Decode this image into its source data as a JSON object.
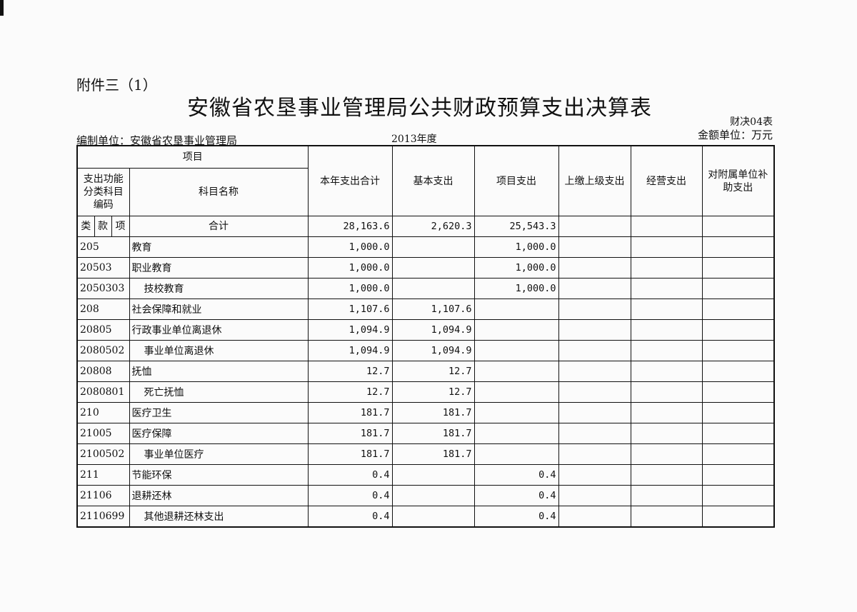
{
  "header": {
    "attachment": "附件三（1）",
    "title": "安徽省农垦事业管理局公共财政预算支出决算表",
    "form_no": "财决04表",
    "amount_unit": "金额单位：万元",
    "org": "编制单位：安徽省农垦事业管理局",
    "year": "2013年度"
  },
  "columns": {
    "item": "项目",
    "code": "支出功能分类科目编码",
    "name": "科目名称",
    "total": "本年支出合计",
    "basic": "基本支出",
    "project": "项目支出",
    "upper": "上缴上级支出",
    "operation": "经营支出",
    "subsidy": "对附属单位补助支出",
    "lei": "类",
    "kuan": "款",
    "xiang": "项"
  },
  "total_row": {
    "name": "合计",
    "total": "28,163.6",
    "basic": "2,620.3",
    "project": "25,543.3"
  },
  "rows": [
    {
      "code": "205",
      "name": "教育",
      "total": "1,000.0",
      "basic": "",
      "project": "1,000.0",
      "indent": false
    },
    {
      "code": "20503",
      "name": "职业教育",
      "total": "1,000.0",
      "basic": "",
      "project": "1,000.0",
      "indent": false
    },
    {
      "code": "2050303",
      "name": "技校教育",
      "total": "1,000.0",
      "basic": "",
      "project": "1,000.0",
      "indent": true
    },
    {
      "code": "208",
      "name": "社会保障和就业",
      "total": "1,107.6",
      "basic": "1,107.6",
      "project": "",
      "indent": false
    },
    {
      "code": "20805",
      "name": "行政事业单位离退休",
      "total": "1,094.9",
      "basic": "1,094.9",
      "project": "",
      "indent": false
    },
    {
      "code": "2080502",
      "name": "事业单位离退休",
      "total": "1,094.9",
      "basic": "1,094.9",
      "project": "",
      "indent": true
    },
    {
      "code": "20808",
      "name": "抚恤",
      "total": "12.7",
      "basic": "12.7",
      "project": "",
      "indent": false
    },
    {
      "code": "2080801",
      "name": "死亡抚恤",
      "total": "12.7",
      "basic": "12.7",
      "project": "",
      "indent": true
    },
    {
      "code": "210",
      "name": "医疗卫生",
      "total": "181.7",
      "basic": "181.7",
      "project": "",
      "indent": false
    },
    {
      "code": "21005",
      "name": "医疗保障",
      "total": "181.7",
      "basic": "181.7",
      "project": "",
      "indent": false
    },
    {
      "code": "2100502",
      "name": "事业单位医疗",
      "total": "181.7",
      "basic": "181.7",
      "project": "",
      "indent": true
    },
    {
      "code": "211",
      "name": "节能环保",
      "total": "0.4",
      "basic": "",
      "project": "0.4",
      "indent": false
    },
    {
      "code": "21106",
      "name": "退耕还林",
      "total": "0.4",
      "basic": "",
      "project": "0.4",
      "indent": false
    },
    {
      "code": "2110699",
      "name": "其他退耕还林支出",
      "total": "0.4",
      "basic": "",
      "project": "0.4",
      "indent": true
    }
  ]
}
